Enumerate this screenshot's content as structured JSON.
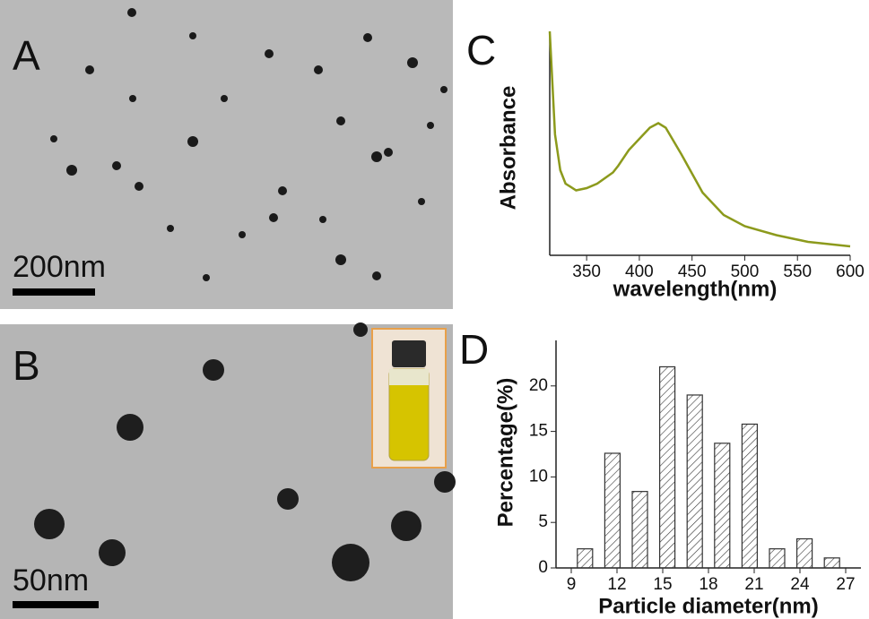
{
  "images": [
    {
      "label": "A",
      "scale_bar": "200nm"
    },
    {
      "label": "B",
      "scale_bar": "50nm"
    }
  ],
  "chart_data": [
    {
      "type": "line",
      "label": "C",
      "x_label": "wavelength(nm)",
      "y_label": "Absorbance",
      "x": [
        315,
        320,
        325,
        330,
        340,
        350,
        360,
        375,
        380,
        390,
        400,
        410,
        418,
        425,
        440,
        460,
        480,
        500,
        530,
        560,
        600
      ],
      "series": [
        {
          "color": "#8c9a1c",
          "values": [
            1.0,
            0.54,
            0.38,
            0.32,
            0.29,
            0.3,
            0.32,
            0.37,
            0.4,
            0.47,
            0.52,
            0.57,
            0.59,
            0.57,
            0.45,
            0.28,
            0.18,
            0.13,
            0.09,
            0.06,
            0.04
          ]
        }
      ],
      "xlim": [
        315,
        600
      ],
      "ylim": [
        0,
        1
      ],
      "xticks": [
        350,
        400,
        450,
        500,
        550,
        600
      ]
    },
    {
      "type": "bar",
      "label": "D",
      "x_label": "Particle diameter(nm)",
      "y_label": "Percentage(%)",
      "x": [
        9.9,
        11.7,
        13.5,
        15.3,
        17.1,
        18.9,
        20.7,
        22.5,
        24.3,
        26.1
      ],
      "values": [
        2.1,
        12.6,
        8.4,
        22.1,
        19.0,
        13.7,
        15.8,
        2.1,
        3.2,
        1.1
      ],
      "color": "#333333",
      "hatch": true,
      "xlim": [
        8,
        28
      ],
      "ylim": [
        0,
        25
      ],
      "xticks": [
        9,
        12,
        15,
        18,
        21,
        24,
        27
      ],
      "yticks": [
        0,
        5,
        10,
        15,
        20
      ]
    }
  ]
}
